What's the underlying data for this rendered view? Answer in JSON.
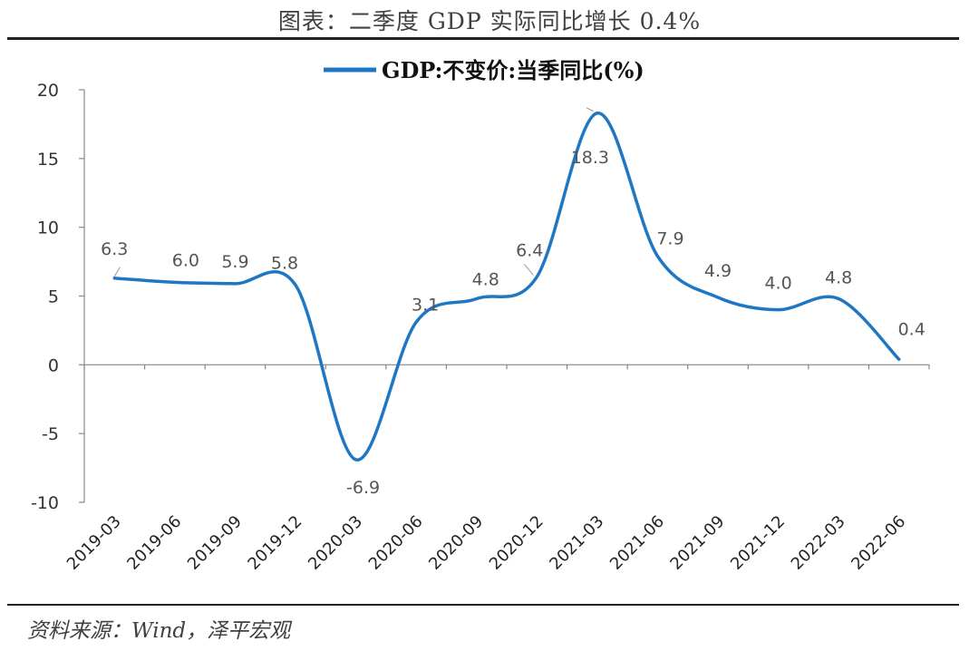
{
  "figure": {
    "title": "图表：二季度 GDP 实际同比增长 0.4%",
    "source": "资料来源：Wind，泽平宏观"
  },
  "colors": {
    "line": "#1f77c4",
    "axis": "#888888"
  },
  "chart_data": {
    "type": "line",
    "categories": [
      "2019-03",
      "2019-06",
      "2019-09",
      "2019-12",
      "2020-03",
      "2020-06",
      "2020-09",
      "2020-12",
      "2021-03",
      "2021-06",
      "2021-09",
      "2021-12",
      "2022-03",
      "2022-06"
    ],
    "series": [
      {
        "name": "GDP:不变价:当季同比(%)",
        "values": [
          6.3,
          6.0,
          5.9,
          5.8,
          -6.9,
          3.1,
          4.8,
          6.4,
          18.3,
          7.9,
          4.9,
          4.0,
          4.8,
          0.4
        ]
      }
    ],
    "ylim": [
      -10,
      20
    ],
    "yticks": [
      "20",
      "15",
      "10",
      "5",
      "0",
      "-5",
      "-10"
    ],
    "data_labels": [
      "6.3",
      "6.0",
      "5.9",
      "5.8",
      "-6.9",
      "3.1",
      "4.8",
      "6.4",
      "18.3",
      "7.9",
      "4.9",
      "4.0",
      "4.8",
      "0.4"
    ],
    "legend_position": "top",
    "grid": false
  }
}
